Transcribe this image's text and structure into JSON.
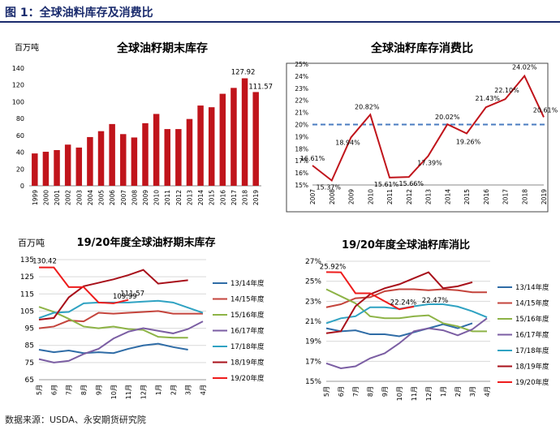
{
  "figure_title": "图 1：全球油料库存及消费比",
  "source": "数据来源：USDA、永安期货研究院",
  "chart_data": [
    {
      "type": "bar",
      "title": "全球油籽期末库存",
      "unit_label": "百万吨",
      "color": "#c0141b",
      "categories": [
        "1999",
        "2000",
        "2001",
        "2002",
        "2003",
        "2004",
        "2005",
        "2006",
        "2007",
        "2008",
        "2009",
        "2010",
        "2011",
        "2012",
        "2013",
        "2014",
        "2015",
        "2016",
        "2017",
        "2018",
        "2019"
      ],
      "values": [
        38.5,
        40.5,
        42.5,
        49,
        45.5,
        58,
        65,
        73.5,
        61.5,
        57.5,
        74.5,
        85.5,
        67.5,
        67.5,
        79.5,
        95.5,
        93.5,
        109.5,
        116.5,
        127.92,
        111.57
      ],
      "annotations": [
        {
          "index": 19,
          "text": "127.92"
        },
        {
          "index": 20,
          "text": "111.57"
        }
      ],
      "ylim": [
        0,
        140
      ],
      "yticks": [
        0,
        20,
        40,
        60,
        80,
        100,
        120,
        140
      ]
    },
    {
      "type": "line",
      "title": "全球油籽库存消费比",
      "color": "#c0141b",
      "reference_color": "#4a7cc0",
      "reference_value": 20.0,
      "categories": [
        "2007",
        "2008",
        "2009",
        "2010",
        "2011",
        "2012",
        "2013",
        "2014",
        "2015",
        "2016",
        "2017",
        "2018",
        "2019"
      ],
      "values": [
        16.61,
        15.37,
        18.94,
        20.82,
        15.61,
        15.66,
        17.39,
        20.02,
        19.26,
        21.43,
        22.1,
        24.02,
        20.61
      ],
      "labels": [
        "16.61%",
        "15.37%",
        "18.94%",
        "20.82%",
        "15.61%",
        "15.66%",
        "17.39%",
        "20.02%",
        "19.26%",
        "21.43%",
        "22.10%",
        "24.02%",
        "20.61%"
      ],
      "ylim": [
        15,
        25
      ],
      "yticks": [
        "15%",
        "16%",
        "17%",
        "18%",
        "19%",
        "20%",
        "21%",
        "22%",
        "23%",
        "24%",
        "25%"
      ]
    },
    {
      "type": "line",
      "title": "19/20年度全球油籽期末库存",
      "unit_label": "百万吨",
      "categories": [
        "5月",
        "6月",
        "7月",
        "8月",
        "9月",
        "10月",
        "11月",
        "12月",
        "1月",
        "2月",
        "3月",
        "4月"
      ],
      "ylim": [
        65,
        135
      ],
      "yticks": [
        "65",
        "75",
        "85",
        "95",
        "105",
        "115",
        "125",
        "135"
      ],
      "series": [
        {
          "name": "13/14年度",
          "color": "#2f6ca6",
          "values": [
            82.5,
            81,
            82,
            80.5,
            81,
            80.5,
            83,
            85,
            86,
            84,
            82.5,
            null
          ]
        },
        {
          "name": "14/15年度",
          "color": "#c4443c",
          "values": [
            95,
            96,
            99.5,
            99,
            104,
            103.5,
            104,
            104.5,
            105,
            103.5,
            103.5,
            103.5
          ]
        },
        {
          "name": "15/16年度",
          "color": "#8db346",
          "values": [
            107.5,
            104.5,
            100.5,
            96,
            95,
            96,
            94.5,
            94,
            90,
            89.5,
            89.5,
            null
          ]
        },
        {
          "name": "16/17年度",
          "color": "#7b5ea3",
          "values": [
            77,
            75,
            76,
            80,
            83,
            89,
            93,
            95,
            93.5,
            92,
            94.5,
            99
          ]
        },
        {
          "name": "17/18年度",
          "color": "#2fa2c2",
          "values": [
            101,
            104,
            104.5,
            109.5,
            110,
            109.99,
            110,
            110.5,
            111,
            110,
            107,
            104
          ]
        },
        {
          "name": "18/19年度",
          "color": "#a8101a",
          "values": [
            100,
            101,
            113,
            119.5,
            121.5,
            123.5,
            126,
            129,
            121,
            122,
            123,
            null
          ]
        },
        {
          "name": "19/20年度",
          "color": "#ee1c1c",
          "values": [
            130.42,
            130.42,
            119,
            119,
            110,
            109.5,
            111.57,
            null,
            null,
            null,
            null,
            null
          ]
        }
      ],
      "annotations": [
        {
          "text": "130.42",
          "series": 6,
          "index": 0
        },
        {
          "text": "109.99",
          "series": 4,
          "index": 5
        },
        {
          "text": "111.57",
          "series": 6,
          "index": 6
        }
      ]
    },
    {
      "type": "line",
      "title": "19/20年度全球油籽库消比",
      "categories": [
        "5月",
        "6月",
        "7月",
        "8月",
        "9月",
        "10月",
        "11月",
        "12月",
        "1月",
        "2月",
        "3月",
        "4月"
      ],
      "ylim": [
        15,
        27
      ],
      "yticks": [
        "15%",
        "17%",
        "19%",
        "21%",
        "23%",
        "25%",
        "27%"
      ],
      "series": [
        {
          "name": "13/14年度",
          "color": "#2f6ca6",
          "values": [
            20.3,
            20.0,
            20.1,
            19.7,
            19.7,
            19.5,
            19.9,
            20.3,
            20.7,
            20.3,
            20.8,
            null
          ]
        },
        {
          "name": "14/15年度",
          "color": "#c4443c",
          "values": [
            22.4,
            22.7,
            23.3,
            23.4,
            24.0,
            24.2,
            24.2,
            24.1,
            24.2,
            24.1,
            23.9,
            23.9
          ]
        },
        {
          "name": "15/16年度",
          "color": "#8db346",
          "values": [
            24.2,
            23.5,
            22.8,
            21.5,
            21.3,
            21.3,
            21.5,
            21.6,
            20.8,
            20.5,
            20.0,
            20.0
          ]
        },
        {
          "name": "16/17年度",
          "color": "#7b5ea3",
          "values": [
            16.8,
            16.3,
            16.5,
            17.3,
            17.8,
            18.8,
            20.0,
            20.3,
            20.1,
            19.6,
            20.2,
            21.3
          ]
        },
        {
          "name": "17/18年度",
          "color": "#2fa2c2",
          "values": [
            20.8,
            21.3,
            21.5,
            22.4,
            22.4,
            22.24,
            22.5,
            22.7,
            22.7,
            22.47,
            22.0,
            21.4
          ]
        },
        {
          "name": "18/19年度",
          "color": "#a8101a",
          "values": [
            19.8,
            20.0,
            22.5,
            23.7,
            24.3,
            24.7,
            25.3,
            25.9,
            24.3,
            24.5,
            24.9,
            null
          ]
        },
        {
          "name": "19/20年度",
          "color": "#ee1c1c",
          "values": [
            25.92,
            25.9,
            23.8,
            23.8,
            23.0,
            22.2,
            22.47,
            null,
            null,
            null,
            null,
            null
          ]
        }
      ],
      "annotations": [
        {
          "text": "25.92%",
          "series": 6,
          "index": 0
        },
        {
          "text": "22.24%",
          "series": 4,
          "index": 5
        },
        {
          "text": "22.47%",
          "series": 6,
          "index": 6
        }
      ]
    }
  ]
}
